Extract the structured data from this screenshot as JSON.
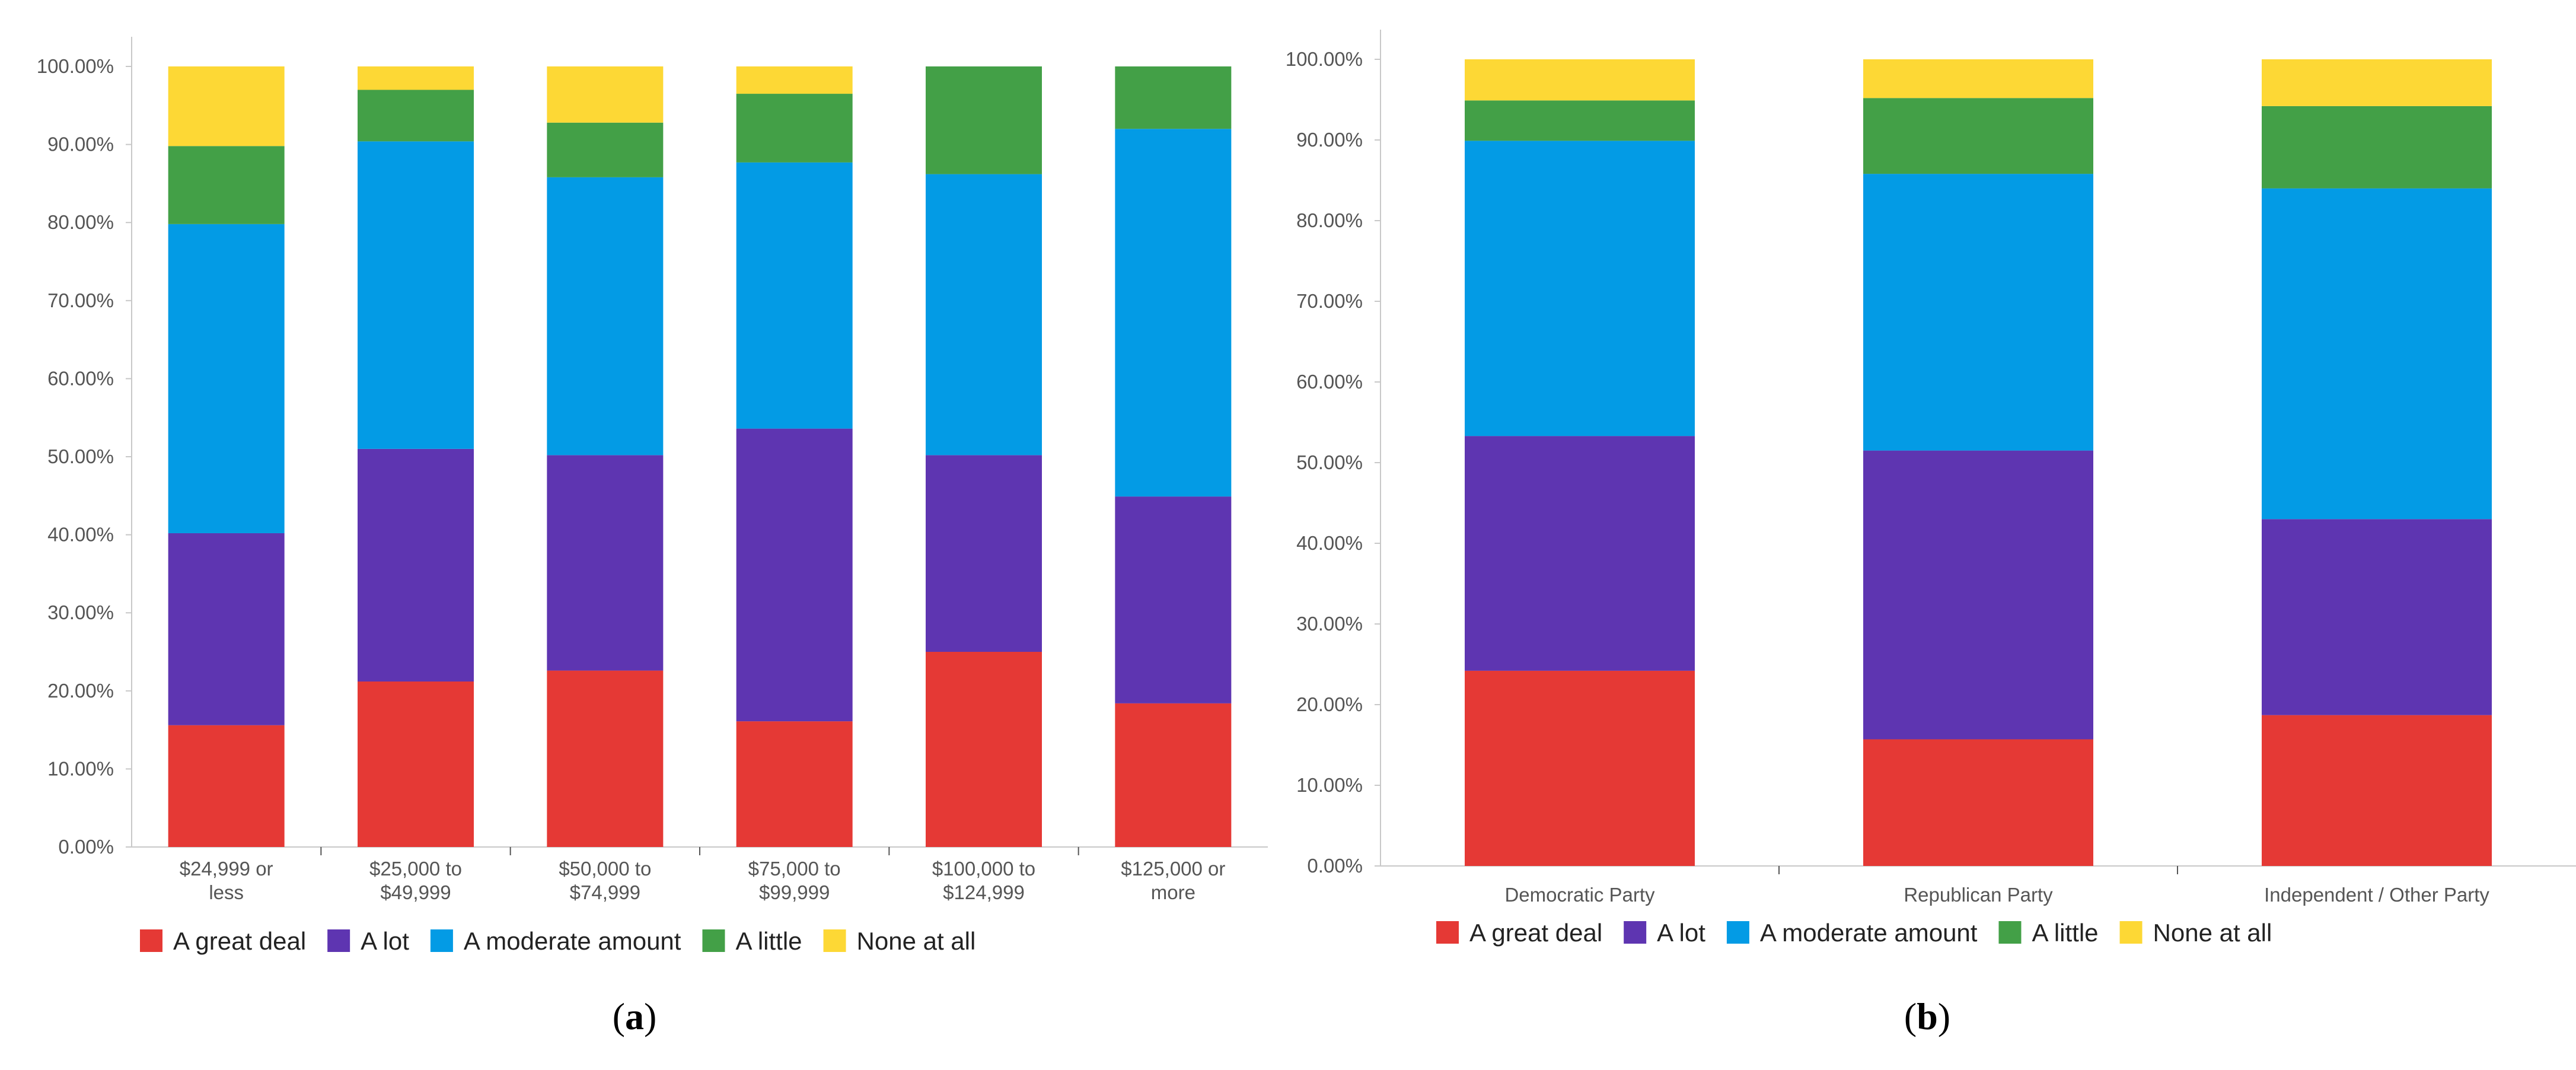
{
  "colors": {
    "A great deal": "#e53935",
    "A lot": "#5e35b1",
    "A moderate amount": "#039be5",
    "A little": "#43a047",
    "None at all": "#fdd835"
  },
  "chart_data": [
    {
      "id": "a",
      "type": "bar",
      "stacked": true,
      "panel_label": "a",
      "categories": [
        [
          "$24,999 or",
          "less"
        ],
        [
          "$25,000 to",
          "$49,999"
        ],
        [
          "$50,000 to",
          "$74,999"
        ],
        [
          "$75,000 to",
          "$99,999"
        ],
        [
          "$100,000 to",
          "$124,999"
        ],
        [
          "$125,000 or",
          "more"
        ]
      ],
      "series": [
        {
          "name": "A great deal",
          "values": [
            15.6,
            21.2,
            22.6,
            16.1,
            25.0,
            18.4
          ]
        },
        {
          "name": "A lot",
          "values": [
            24.6,
            29.8,
            27.6,
            37.5,
            25.2,
            26.5
          ]
        },
        {
          "name": "A moderate amount",
          "values": [
            39.6,
            39.4,
            35.6,
            34.1,
            36.0,
            47.1
          ]
        },
        {
          "name": "A little",
          "values": [
            10.0,
            6.6,
            7.0,
            8.8,
            13.8,
            8.0
          ]
        },
        {
          "name": "None at all",
          "values": [
            10.2,
            3.0,
            7.2,
            3.5,
            0.0,
            0.0
          ]
        }
      ],
      "ylim": [
        0,
        100
      ],
      "yticks": [
        "0.00%",
        "10.00%",
        "20.00%",
        "30.00%",
        "40.00%",
        "50.00%",
        "60.00%",
        "70.00%",
        "80.00%",
        "90.00%",
        "100.00%"
      ],
      "title": "",
      "xlabel": "",
      "ylabel": "",
      "legend": "bottom"
    },
    {
      "id": "b",
      "type": "bar",
      "stacked": true,
      "panel_label": "b",
      "categories": [
        [
          "Democratic Party"
        ],
        [
          "Republican Party"
        ],
        [
          "Independent / Other Party"
        ]
      ],
      "series": [
        {
          "name": "A great deal",
          "values": [
            24.2,
            15.7,
            18.7
          ]
        },
        {
          "name": "A lot",
          "values": [
            29.1,
            35.8,
            24.3
          ]
        },
        {
          "name": "A moderate amount",
          "values": [
            36.6,
            34.3,
            41.0
          ]
        },
        {
          "name": "A little",
          "values": [
            5.0,
            9.4,
            10.2
          ]
        },
        {
          "name": "None at all",
          "values": [
            5.1,
            4.8,
            5.8
          ]
        }
      ],
      "ylim": [
        0,
        100
      ],
      "yticks": [
        "0.00%",
        "10.00%",
        "20.00%",
        "30.00%",
        "40.00%",
        "50.00%",
        "60.00%",
        "70.00%",
        "80.00%",
        "90.00%",
        "100.00%"
      ],
      "title": "",
      "xlabel": "",
      "ylabel": "",
      "legend": "bottom"
    }
  ]
}
